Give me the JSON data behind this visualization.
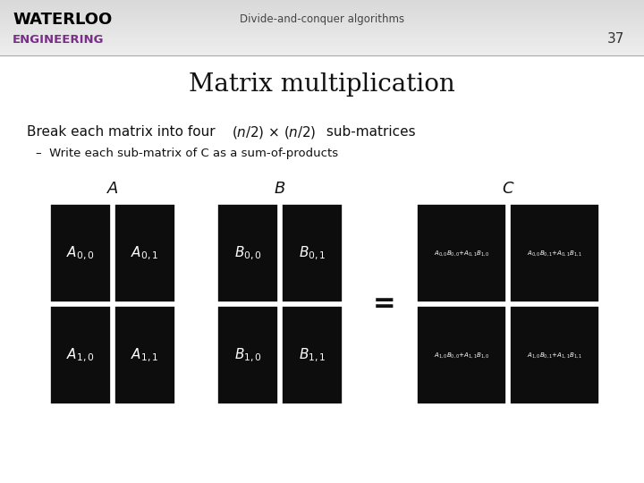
{
  "title": "Matrix multiplication",
  "header_text": "Divide-and-conquer algorithms",
  "slide_number": "37",
  "bg_color": "#ffffff",
  "waterloo_color": "#000000",
  "engineering_color": "#7b2d8b",
  "cell_bg": "#0d0d0d",
  "cell_text_color": "#ffffff",
  "A_cells": [
    "A_{0,0}",
    "A_{0,1}",
    "A_{1,0}",
    "A_{1,1}"
  ],
  "B_cells": [
    "B_{0,0}",
    "B_{0,1}",
    "B_{1,0}",
    "B_{1,1}"
  ],
  "C_top_left": "A_{0,0}B_{0,0}{+}A_{0,1}B_{1,0}",
  "C_top_right": "A_{0,0}B_{0,1}{+}A_{0,1}B_{1,1}",
  "C_bot_left": "A_{1,0}B_{0,0}{+}A_{1,1}B_{1,0}",
  "C_bot_right": "A_{1,0}B_{0,1}{+}A_{1,1}B_{1,1}",
  "label_A": "A",
  "label_B": "B",
  "label_C": "C"
}
